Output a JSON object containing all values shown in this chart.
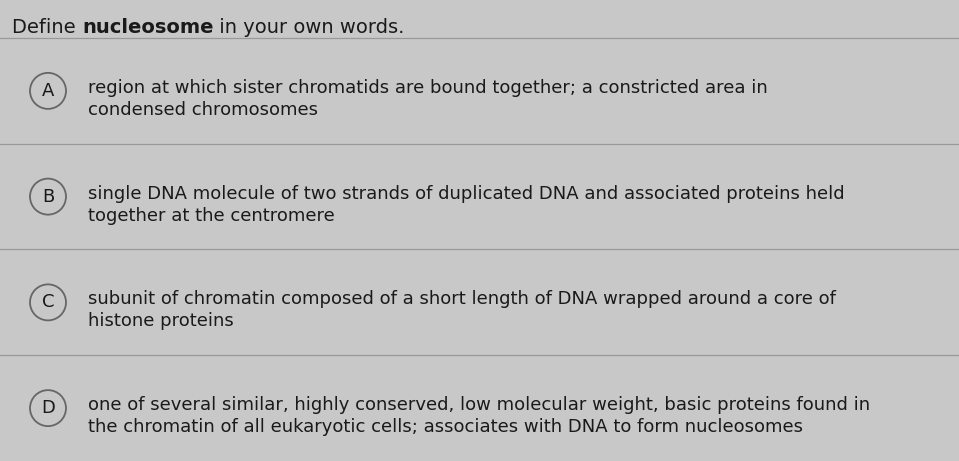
{
  "title_plain": "Define ",
  "title_bold": "nucleosome",
  "title_end": " in your own words.",
  "background_color": "#c8c8c8",
  "title_color": "#1a1a1a",
  "option_text_color": "#1a1a1a",
  "circle_edge_color": "#666666",
  "circle_face_color": "#c8c8c8",
  "divider_color": "#999999",
  "options": [
    {
      "label": "A",
      "line1": "region at which sister chromatids are bound together; a constricted area in",
      "line2": "condensed chromosomes"
    },
    {
      "label": "B",
      "line1": "single DNA molecule of two strands of duplicated DNA and associated proteins held",
      "line2": "together at the centromere"
    },
    {
      "label": "C",
      "line1": "subunit of chromatin composed of a short length of DNA wrapped around a core of",
      "line2": "histone proteins"
    },
    {
      "label": "D",
      "line1": "one of several similar, highly conserved, low molecular weight, basic proteins found in",
      "line2": "the chromatin of all eukaryotic cells; associates with DNA to form nucleosomes"
    }
  ],
  "title_fontsize": 14,
  "option_fontsize": 13,
  "label_fontsize": 13,
  "figwidth": 9.59,
  "figheight": 4.61,
  "dpi": 100
}
